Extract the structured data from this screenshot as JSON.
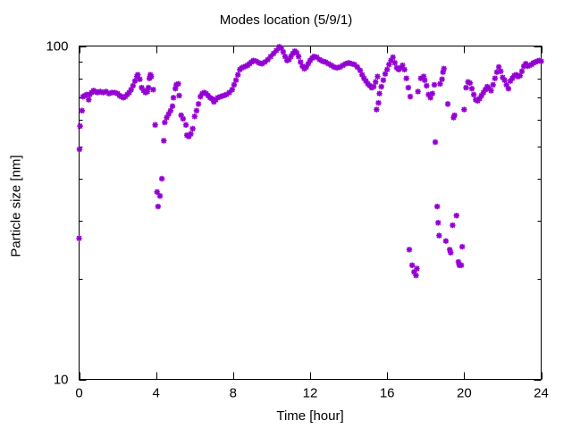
{
  "chart_data": {
    "type": "scatter",
    "title": "Modes location (5/9/1)",
    "xlabel": "Time [hour]",
    "ylabel": "Particle size [nm]",
    "xlim": [
      0,
      24
    ],
    "ylim": [
      10,
      100
    ],
    "yscale": "log",
    "xticks": [
      0,
      4,
      8,
      12,
      16,
      20,
      24
    ],
    "yticks": [
      10,
      100
    ],
    "grid": false,
    "marker": "star",
    "color": "#9400d3",
    "series": [
      {
        "points": [
          [
            0.0,
            26.5
          ],
          [
            0.02,
            49.0
          ],
          [
            0.05,
            57.5
          ],
          [
            0.15,
            64.0
          ],
          [
            0.2,
            70.5
          ],
          [
            0.3,
            71.0
          ],
          [
            0.4,
            71.5
          ],
          [
            0.5,
            69.0
          ],
          [
            0.55,
            71.5
          ],
          [
            0.65,
            72.5
          ],
          [
            0.75,
            73.5
          ],
          [
            0.85,
            73.0
          ],
          [
            0.95,
            72.5
          ],
          [
            1.1,
            73.0
          ],
          [
            1.25,
            72.5
          ],
          [
            1.4,
            73.0
          ],
          [
            1.55,
            72.0
          ],
          [
            1.7,
            72.5
          ],
          [
            1.85,
            72.5
          ],
          [
            2.0,
            72.0
          ],
          [
            2.1,
            71.0
          ],
          [
            2.2,
            70.5
          ],
          [
            2.3,
            70.0
          ],
          [
            2.4,
            70.5
          ],
          [
            2.5,
            71.5
          ],
          [
            2.6,
            72.5
          ],
          [
            2.7,
            74.0
          ],
          [
            2.8,
            76.0
          ],
          [
            2.9,
            78.5
          ],
          [
            3.0,
            81.0
          ],
          [
            3.05,
            82.0
          ],
          [
            3.15,
            79.5
          ],
          [
            3.25,
            75.0
          ],
          [
            3.35,
            73.5
          ],
          [
            3.45,
            72.5
          ],
          [
            3.55,
            73.0
          ],
          [
            3.6,
            75.0
          ],
          [
            3.65,
            80.0
          ],
          [
            3.7,
            82.0
          ],
          [
            3.75,
            81.0
          ],
          [
            3.85,
            74.0
          ],
          [
            3.95,
            58.0
          ],
          [
            4.05,
            36.5
          ],
          [
            4.1,
            33.0
          ],
          [
            4.2,
            35.5
          ],
          [
            4.3,
            40.0
          ],
          [
            4.4,
            52.0
          ],
          [
            4.45,
            59.0
          ],
          [
            4.55,
            61.0
          ],
          [
            4.65,
            62.5
          ],
          [
            4.75,
            64.0
          ],
          [
            4.85,
            66.0
          ],
          [
            4.9,
            70.0
          ],
          [
            5.0,
            74.5
          ],
          [
            5.05,
            76.5
          ],
          [
            5.15,
            77.0
          ],
          [
            5.2,
            71.0
          ],
          [
            5.3,
            62.0
          ],
          [
            5.4,
            60.5
          ],
          [
            5.55,
            58.0
          ],
          [
            5.6,
            54.0
          ],
          [
            5.7,
            53.5
          ],
          [
            5.8,
            54.5
          ],
          [
            5.9,
            56.5
          ],
          [
            6.0,
            61.5
          ],
          [
            6.1,
            64.0
          ],
          [
            6.2,
            67.0
          ],
          [
            6.3,
            70.5
          ],
          [
            6.4,
            72.0
          ],
          [
            6.5,
            72.5
          ],
          [
            6.6,
            72.0
          ],
          [
            6.7,
            71.0
          ],
          [
            6.8,
            70.0
          ],
          [
            6.9,
            69.5
          ],
          [
            7.0,
            68.0
          ],
          [
            7.1,
            69.0
          ],
          [
            7.2,
            70.0
          ],
          [
            7.35,
            70.5
          ],
          [
            7.5,
            71.0
          ],
          [
            7.65,
            71.5
          ],
          [
            7.8,
            72.5
          ],
          [
            7.95,
            74.0
          ],
          [
            8.05,
            76.5
          ],
          [
            8.15,
            79.0
          ],
          [
            8.25,
            82.0
          ],
          [
            8.35,
            85.0
          ],
          [
            8.45,
            86.0
          ],
          [
            8.55,
            86.5
          ],
          [
            8.65,
            87.0
          ],
          [
            8.75,
            87.5
          ],
          [
            8.85,
            88.5
          ],
          [
            8.95,
            89.5
          ],
          [
            9.05,
            90.5
          ],
          [
            9.2,
            90.0
          ],
          [
            9.35,
            89.0
          ],
          [
            9.5,
            88.5
          ],
          [
            9.65,
            89.5
          ],
          [
            9.8,
            91.0
          ],
          [
            9.95,
            93.0
          ],
          [
            10.1,
            95.0
          ],
          [
            10.25,
            97.0
          ],
          [
            10.4,
            99.5
          ],
          [
            10.5,
            98.5
          ],
          [
            10.6,
            96.0
          ],
          [
            10.7,
            93.0
          ],
          [
            10.8,
            90.5
          ],
          [
            10.9,
            91.0
          ],
          [
            11.0,
            93.0
          ],
          [
            11.1,
            95.0
          ],
          [
            11.2,
            96.5
          ],
          [
            11.3,
            95.5
          ],
          [
            11.4,
            93.0
          ],
          [
            11.5,
            89.5
          ],
          [
            11.6,
            87.0
          ],
          [
            11.7,
            85.5
          ],
          [
            11.8,
            86.5
          ],
          [
            11.9,
            88.5
          ],
          [
            12.0,
            90.5
          ],
          [
            12.1,
            92.0
          ],
          [
            12.2,
            93.0
          ],
          [
            12.35,
            92.5
          ],
          [
            12.5,
            91.0
          ],
          [
            12.65,
            90.0
          ],
          [
            12.8,
            89.5
          ],
          [
            12.95,
            88.5
          ],
          [
            13.1,
            87.5
          ],
          [
            13.25,
            86.5
          ],
          [
            13.4,
            86.0
          ],
          [
            13.55,
            86.5
          ],
          [
            13.7,
            87.5
          ],
          [
            13.85,
            88.5
          ],
          [
            14.0,
            89.0
          ],
          [
            14.15,
            88.5
          ],
          [
            14.3,
            88.0
          ],
          [
            14.45,
            86.5
          ],
          [
            14.6,
            84.5
          ],
          [
            14.7,
            82.0
          ],
          [
            14.8,
            80.0
          ],
          [
            14.9,
            78.5
          ],
          [
            15.0,
            77.0
          ],
          [
            15.1,
            76.0
          ],
          [
            15.2,
            75.0
          ],
          [
            15.3,
            75.5
          ],
          [
            15.4,
            78.0
          ],
          [
            15.5,
            81.0
          ],
          [
            15.45,
            64.5
          ],
          [
            15.55,
            67.5
          ],
          [
            15.6,
            72.0
          ],
          [
            15.7,
            75.5
          ],
          [
            15.8,
            79.0
          ],
          [
            15.9,
            82.5
          ],
          [
            16.0,
            85.0
          ],
          [
            16.1,
            88.0
          ],
          [
            16.2,
            90.5
          ],
          [
            16.3,
            92.5
          ],
          [
            16.4,
            89.0
          ],
          [
            16.5,
            86.0
          ],
          [
            16.6,
            85.0
          ],
          [
            16.7,
            86.0
          ],
          [
            16.8,
            87.5
          ],
          [
            16.9,
            85.0
          ],
          [
            17.0,
            80.0
          ],
          [
            17.1,
            75.0
          ],
          [
            17.15,
            24.5
          ],
          [
            17.2,
            70.5
          ],
          [
            17.3,
            22.0
          ],
          [
            17.4,
            21.0
          ],
          [
            17.5,
            20.5
          ],
          [
            17.55,
            21.5
          ],
          [
            17.6,
            73.0
          ],
          [
            17.75,
            80.0
          ],
          [
            17.9,
            81.0
          ],
          [
            17.95,
            79.0
          ],
          [
            18.05,
            76.0
          ],
          [
            18.15,
            71.5
          ],
          [
            18.25,
            70.0
          ],
          [
            18.35,
            72.0
          ],
          [
            18.45,
            76.5
          ],
          [
            18.5,
            51.5
          ],
          [
            18.6,
            33.0
          ],
          [
            18.65,
            29.5
          ],
          [
            18.7,
            27.0
          ],
          [
            18.75,
            77.0
          ],
          [
            18.85,
            79.5
          ],
          [
            18.9,
            83.5
          ],
          [
            18.95,
            85.5
          ],
          [
            19.05,
            26.0
          ],
          [
            19.15,
            67.0
          ],
          [
            19.25,
            24.5
          ],
          [
            19.3,
            24.0
          ],
          [
            19.4,
            29.0
          ],
          [
            19.45,
            61.0
          ],
          [
            19.5,
            62.0
          ],
          [
            19.6,
            31.0
          ],
          [
            19.7,
            22.5
          ],
          [
            19.75,
            22.0
          ],
          [
            19.85,
            22.0
          ],
          [
            19.9,
            25.0
          ],
          [
            20.0,
            64.5
          ],
          [
            20.1,
            75.0
          ],
          [
            20.2,
            78.0
          ],
          [
            20.3,
            77.5
          ],
          [
            20.4,
            74.5
          ],
          [
            20.5,
            71.5
          ],
          [
            20.6,
            69.0
          ],
          [
            20.7,
            68.5
          ],
          [
            20.8,
            69.5
          ],
          [
            20.9,
            71.0
          ],
          [
            21.0,
            72.5
          ],
          [
            21.1,
            74.0
          ],
          [
            21.2,
            75.5
          ],
          [
            21.3,
            74.5
          ],
          [
            21.4,
            73.5
          ],
          [
            21.5,
            76.5
          ],
          [
            21.6,
            80.0
          ],
          [
            21.7,
            83.5
          ],
          [
            21.8,
            86.5
          ],
          [
            21.9,
            84.0
          ],
          [
            22.0,
            80.5
          ],
          [
            22.1,
            79.0
          ],
          [
            22.2,
            76.5
          ],
          [
            22.3,
            74.5
          ],
          [
            22.4,
            78.5
          ],
          [
            22.5,
            80.0
          ],
          [
            22.6,
            81.5
          ],
          [
            22.7,
            82.0
          ],
          [
            22.8,
            81.0
          ],
          [
            22.9,
            81.5
          ],
          [
            23.0,
            84.0
          ],
          [
            23.1,
            87.0
          ],
          [
            23.2,
            88.5
          ],
          [
            23.3,
            87.0
          ],
          [
            23.4,
            87.5
          ],
          [
            23.5,
            88.0
          ],
          [
            23.6,
            89.0
          ],
          [
            23.7,
            89.5
          ],
          [
            23.8,
            90.0
          ],
          [
            23.9,
            90.5
          ],
          [
            24.0,
            90.0
          ]
        ]
      }
    ]
  }
}
